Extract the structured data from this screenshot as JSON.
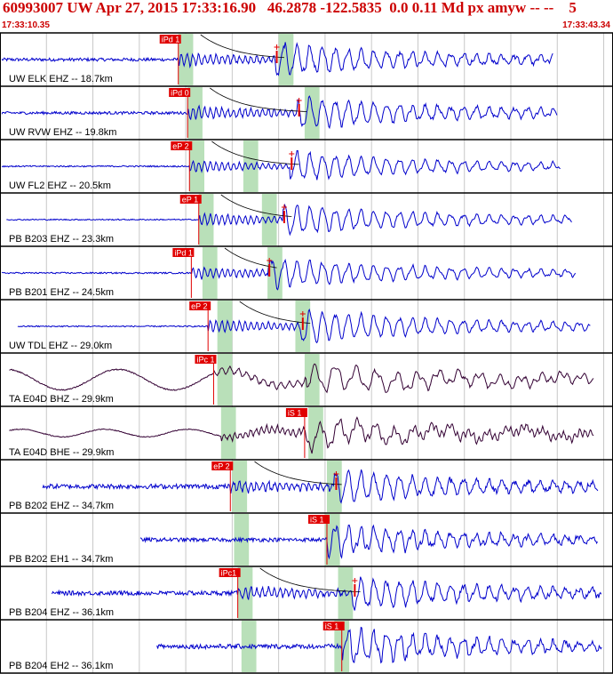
{
  "header": {
    "title": "60993007 UW Apr 27, 2015 17:33:16.90   46.2878 -122.5835  0.0 0.11 Md px amyw -- --    5",
    "time_start": "17:33:10.35",
    "time_end": "17:33:43.34"
  },
  "colors": {
    "accent": "#cc0000",
    "trace_vertical": "#0000cc",
    "trace_broadband": "#330033",
    "window": "#b9e0b9",
    "pick": "#e00000"
  },
  "chart_data": {
    "type": "line",
    "title": "",
    "xlabel": "",
    "ylabel": "",
    "x_range": [
      "17:33:10.35",
      "17:33:43.34"
    ],
    "x_units": "seconds after 17:33:10.35",
    "xlim": [
      0,
      33
    ],
    "tick_interval_s": 2.5,
    "grid": true,
    "traces": [
      {
        "label": "UW ELK EHZ -- 18.7km",
        "color": "#0000cc",
        "pick": "iPd 1",
        "pick_time_s": 9.6,
        "s_time_s": 14.8,
        "window_s": [
          9.6,
          10.4
        ],
        "s_window_s": [
          15.0,
          15.8
        ],
        "coda_end_s": 29.8,
        "amplitude": 0.6,
        "noise": 0.1,
        "type": "sp"
      },
      {
        "label": "UW RVW EHZ -- 19.8km",
        "color": "#0000cc",
        "pick": "iPd 0",
        "pick_time_s": 10.1,
        "s_time_s": 16.0,
        "window_s": [
          10.1,
          10.9
        ],
        "s_window_s": [
          16.4,
          17.2
        ],
        "coda_end_s": 30.0,
        "amplitude": 0.58,
        "noise": 0.09,
        "type": "sp"
      },
      {
        "label": "UW FL2 EHZ -- 20.5km",
        "color": "#0000cc",
        "pick": "eP 2",
        "pick_time_s": 10.2,
        "s_time_s": 15.6,
        "window_s": [
          10.2,
          11.0
        ],
        "s_window_s": [
          13.1,
          13.9
        ],
        "coda_end_s": 30.2,
        "amplitude": 0.52,
        "noise": 0.05,
        "type": "sp"
      },
      {
        "label": "PB B203 EHZ -- 23.3km",
        "color": "#0000cc",
        "pick": "eP 1",
        "pick_time_s": 10.7,
        "s_time_s": 15.2,
        "window_s": [
          10.7,
          11.5
        ],
        "s_window_s": [
          14.1,
          14.9
        ],
        "coda_end_s": 30.8,
        "amplitude": 0.56,
        "noise": 0.04,
        "type": "sp"
      },
      {
        "label": "PB B201 EHZ -- 24.5km",
        "color": "#0000cc",
        "pick": "iPd 1",
        "pick_time_s": 10.3,
        "s_time_s": 14.4,
        "window_s": [
          10.9,
          11.7
        ],
        "s_window_s": [
          14.4,
          15.2
        ],
        "coda_end_s": 31.0,
        "amplitude": 0.55,
        "noise": 0.05,
        "type": "sp"
      },
      {
        "label": "UW TDL EHZ -- 29.0km",
        "color": "#0000cc",
        "pick": "eP 2",
        "pick_time_s": 11.2,
        "s_time_s": 16.2,
        "window_s": [
          11.7,
          12.5
        ],
        "s_window_s": [
          15.9,
          16.7
        ],
        "coda_end_s": 31.8,
        "amplitude": 0.6,
        "noise": 0.04,
        "type": "sp"
      },
      {
        "label": "TA E04D BHZ -- 29.9km",
        "color": "#330033",
        "pick": "iPc 1",
        "pick_time_s": 11.5,
        "s_time_s": 16.5,
        "window_s": [
          11.7,
          12.5
        ],
        "s_window_s": [
          16.4,
          17.2
        ],
        "coda_end_s": 32.0,
        "amplitude": 0.7,
        "noise": 0.0,
        "type": "bb"
      },
      {
        "label": "TA E04D BHE -- 29.9km",
        "color": "#330033",
        "pick": "iS 1",
        "pick_time_s": 16.4,
        "s_time_s": 16.4,
        "window_s": [
          11.9,
          12.7
        ],
        "s_window_s": [
          16.6,
          17.4
        ],
        "coda_end_s": 32.0,
        "amplitude": 0.65,
        "noise": 0.0,
        "type": "bbh"
      },
      {
        "label": "PB B202 EHZ -- 34.7km",
        "color": "#0000cc",
        "pick": "eP 2",
        "pick_time_s": 12.4,
        "s_time_s": 18.0,
        "window_s": [
          12.5,
          13.3
        ],
        "s_window_s": [
          17.6,
          18.4
        ],
        "coda_end_s": 32.2,
        "amplitude": 0.58,
        "noise": 0.15,
        "type": "sp"
      },
      {
        "label": "PB B202 EH1 -- 34.7km",
        "color": "#0000cc",
        "pick": "iS 1",
        "pick_time_s": 17.6,
        "s_time_s": 17.6,
        "window_s": [
          12.6,
          13.4
        ],
        "s_window_s": [
          17.5,
          18.3
        ],
        "coda_end_s": 32.2,
        "amplitude": 0.55,
        "noise": 0.13,
        "type": "sph"
      },
      {
        "label": "PB B204 EHZ -- 36.1km",
        "color": "#0000cc",
        "pick": "iPc1",
        "pick_time_s": 12.8,
        "s_time_s": 19.0,
        "window_s": [
          12.8,
          13.6
        ],
        "s_window_s": [
          18.2,
          19.0
        ],
        "coda_end_s": 32.4,
        "amplitude": 0.58,
        "noise": 0.14,
        "type": "sp"
      },
      {
        "label": "PB B204 EH2 -- 36.1km",
        "color": "#0000cc",
        "pick": "iS 1",
        "pick_time_s": 18.4,
        "s_time_s": 18.4,
        "window_s": [
          13.0,
          13.8
        ],
        "s_window_s": [
          18.0,
          18.8
        ],
        "coda_end_s": 32.4,
        "amplitude": 0.62,
        "noise": 0.14,
        "type": "sph"
      }
    ]
  }
}
